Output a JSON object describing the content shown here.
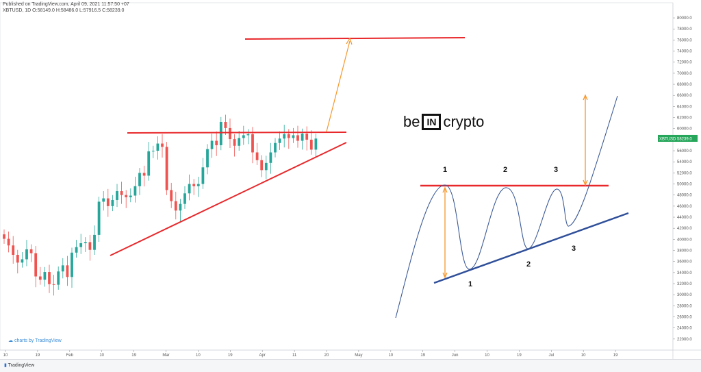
{
  "header": {
    "line1": "Published on TradingView.com, April 09, 2021 11:57:50 +07",
    "line2": "XBTUSD, 1D  O:58149.0 H:58486.0 L:57916.5 C:58239.0"
  },
  "watermark": "charts by TradingView",
  "footer_logo": "TradingView",
  "brand": {
    "left": "be",
    "box": "IN",
    "right": "crypto"
  },
  "price_tag": {
    "label": "XBTUSD",
    "value": "58239.0"
  },
  "colors": {
    "up": "#26a69a",
    "down": "#ef5350",
    "resistance": "#e8282b",
    "arrow": "#f5962a",
    "schematic_line": "#3c5a97",
    "support_lower": "#2f4f99"
  },
  "chart_data": {
    "type": "candlestick",
    "symbol": "XBTUSD",
    "interval": "1D",
    "ylim": [
      20000,
      81000
    ],
    "y_ticks": [
      "22000.0",
      "24000.0",
      "26000.0",
      "28000.0",
      "30000.0",
      "32000.0",
      "34000.0",
      "36000.0",
      "38000.0",
      "40000.0",
      "42000.0",
      "44000.0",
      "46000.0",
      "48000.0",
      "50000.0",
      "52000.0",
      "54000.0",
      "56000.0",
      "58000.0",
      "60000.0",
      "62000.0",
      "64000.0",
      "66000.0",
      "68000.0",
      "70000.0",
      "72000.0",
      "74000.0",
      "76000.0",
      "78000.0",
      "80000.0"
    ],
    "x_ticks": [
      "10",
      "19",
      "Feb",
      "10",
      "19",
      "Mar",
      "10",
      "19",
      "Apr",
      "11",
      "20",
      "May",
      "10",
      "19",
      "Jun",
      "10",
      "19",
      "Jul",
      "10",
      "19"
    ],
    "close_estimates": [
      40100,
      38900,
      37200,
      35800,
      36400,
      38200,
      37500,
      33300,
      32700,
      34100,
      31900,
      31800,
      34200,
      35300,
      33200,
      37600,
      38600,
      39300,
      39500,
      38100,
      40800,
      46800,
      47400,
      46000,
      47100,
      48700,
      48000,
      47600,
      47900,
      49600,
      52000,
      51500,
      55900,
      56000,
      57300,
      56700,
      48900,
      46900,
      45200,
      46400,
      48300,
      50000,
      49600,
      50000,
      53000,
      56300,
      57800,
      57000,
      61200,
      60100,
      58100,
      56900,
      58300,
      58800,
      59000,
      55700,
      54300,
      52500,
      53800,
      55700,
      57400,
      58200,
      59000,
      58300,
      58800,
      57800,
      59100,
      58000,
      56200,
      58200
    ]
  },
  "pattern": {
    "peak_labels": [
      "1",
      "2",
      "3"
    ],
    "trough_labels": [
      "1",
      "2",
      "3"
    ]
  }
}
